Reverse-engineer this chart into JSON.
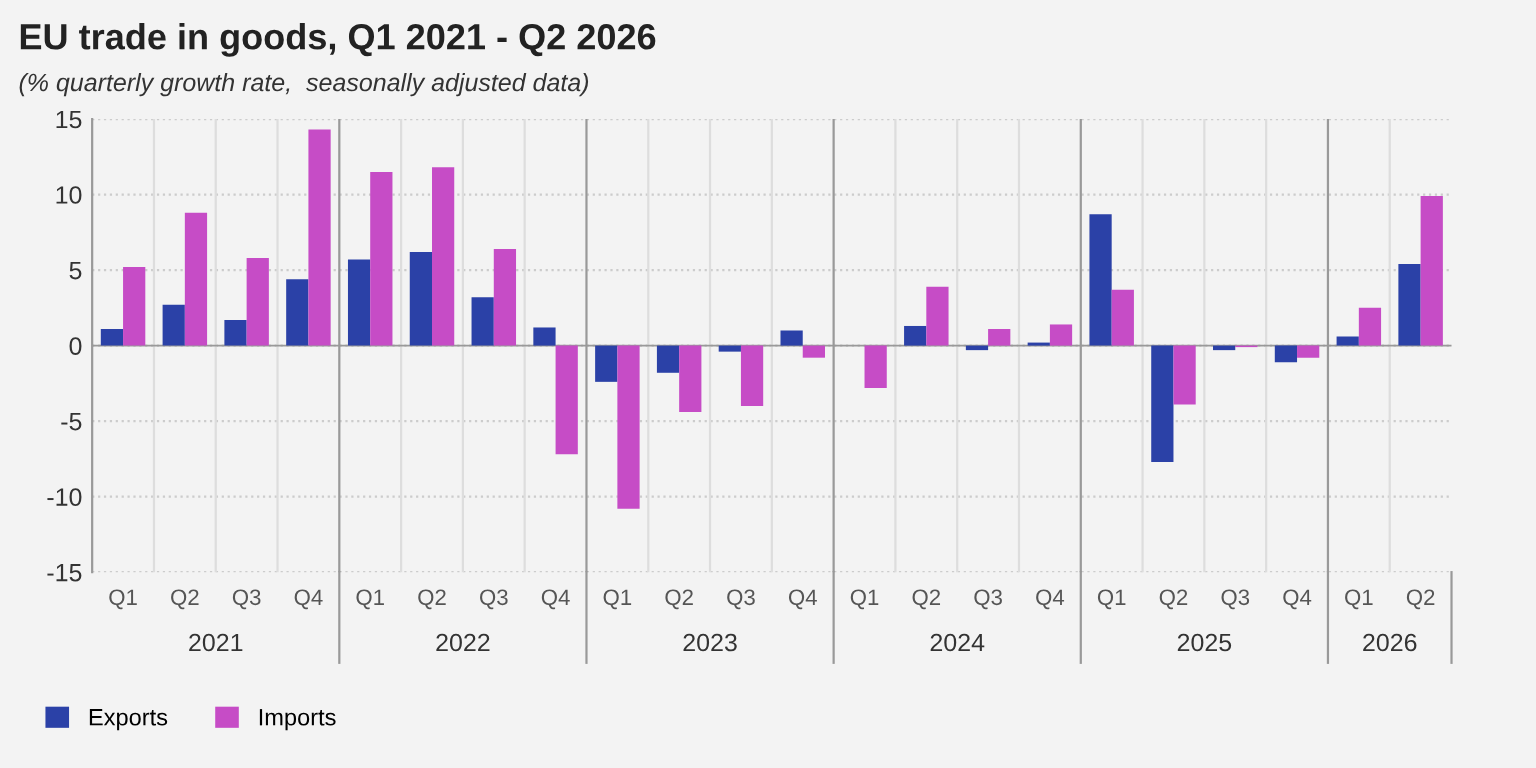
{
  "chart_data": {
    "type": "bar",
    "title": "EU trade in goods, Q1 2021 - Q2 2026",
    "subtitle": "(% quarterly growth rate,  seasonally adjusted data)",
    "categories": [
      "Q1",
      "Q2",
      "Q3",
      "Q4",
      "Q1",
      "Q2",
      "Q3",
      "Q4",
      "Q1",
      "Q2",
      "Q3",
      "Q4",
      "Q1",
      "Q2",
      "Q3",
      "Q4",
      "Q1",
      "Q2",
      "Q3",
      "Q4",
      "Q1",
      "Q2"
    ],
    "annotations": [
      "2021",
      "2022",
      "2023",
      "2024",
      "2025",
      "2026"
    ],
    "series": [
      {
        "name": "Exports",
        "color": "#2b41a7",
        "values": [
          1.1,
          2.7,
          1.7,
          4.4,
          5.7,
          6.2,
          3.2,
          1.2,
          -2.4,
          -1.8,
          -0.4,
          1.0,
          0.0,
          1.3,
          -0.3,
          0.2,
          8.7,
          -7.7,
          -0.3,
          -1.1,
          0.6,
          5.4
        ]
      },
      {
        "name": "Imports",
        "color": "#c64cc6",
        "values": [
          5.2,
          8.8,
          5.8,
          14.3,
          11.5,
          11.8,
          6.4,
          -7.2,
          -10.8,
          -4.4,
          -4.0,
          -0.8,
          -2.8,
          3.9,
          1.1,
          1.4,
          3.7,
          -3.9,
          -0.1,
          -0.8,
          2.5,
          9.9
        ]
      }
    ],
    "ylim": [
      -15,
      15
    ],
    "yticks": [
      -15,
      -10,
      -5,
      0,
      5,
      10,
      15
    ],
    "grid": true,
    "legend": "bottom left"
  }
}
